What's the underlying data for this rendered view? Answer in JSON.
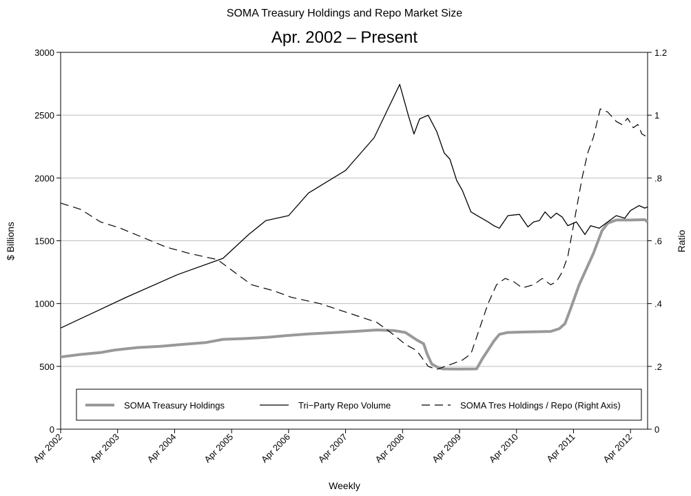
{
  "chart_data": {
    "type": "line",
    "title": "SOMA Treasury Holdings and Repo Market Size",
    "subtitle": "Apr. 2002 – Present",
    "xlabel": "Weekly",
    "ylabel_left": "$ Billions",
    "ylabel_right": "Ratio",
    "xlim": [
      2002.25,
      2012.55
    ],
    "ylim_left": [
      0,
      3000
    ],
    "ylim_right": [
      0,
      1.2
    ],
    "x_ticks": [
      {
        "x": 2002.25,
        "label": "Apr 2002"
      },
      {
        "x": 2003.25,
        "label": "Apr 2003"
      },
      {
        "x": 2004.25,
        "label": "Apr 2004"
      },
      {
        "x": 2005.25,
        "label": "Apr 2005"
      },
      {
        "x": 2006.25,
        "label": "Apr 2006"
      },
      {
        "x": 2007.25,
        "label": "Apr 2007"
      },
      {
        "x": 2008.25,
        "label": "Apr 2008"
      },
      {
        "x": 2009.25,
        "label": "Apr 2009"
      },
      {
        "x": 2010.25,
        "label": "Apr 2010"
      },
      {
        "x": 2011.25,
        "label": "Apr 2011"
      },
      {
        "x": 2012.25,
        "label": "Apr 2012"
      }
    ],
    "y_ticks_left": [
      {
        "v": 0,
        "label": "0"
      },
      {
        "v": 500,
        "label": "500"
      },
      {
        "v": 1000,
        "label": "1000"
      },
      {
        "v": 1500,
        "label": "1500"
      },
      {
        "v": 2000,
        "label": "2000"
      },
      {
        "v": 2500,
        "label": "2500"
      },
      {
        "v": 3000,
        "label": "3000"
      }
    ],
    "y_ticks_right": [
      {
        "v": 0,
        "label": "0"
      },
      {
        "v": 0.2,
        "label": ".2"
      },
      {
        "v": 0.4,
        "label": ".4"
      },
      {
        "v": 0.6,
        "label": ".6"
      },
      {
        "v": 0.8,
        "label": ".8"
      },
      {
        "v": 1.0,
        "label": "1"
      },
      {
        "v": 1.2,
        "label": "1.2"
      }
    ],
    "grid": "horizontal",
    "legend_position": "bottom-inside",
    "series": [
      {
        "name": "SOMA Treasury Holdings",
        "axis": "left",
        "style": "thick-gray",
        "color": "#999999",
        "points": [
          [
            2002.25,
            575
          ],
          [
            2002.6,
            595
          ],
          [
            2002.95,
            610
          ],
          [
            2003.2,
            630
          ],
          [
            2003.6,
            650
          ],
          [
            2004.0,
            660
          ],
          [
            2004.4,
            675
          ],
          [
            2004.8,
            690
          ],
          [
            2005.1,
            715
          ],
          [
            2005.5,
            722
          ],
          [
            2005.9,
            732
          ],
          [
            2006.2,
            745
          ],
          [
            2006.6,
            758
          ],
          [
            2007.0,
            768
          ],
          [
            2007.4,
            778
          ],
          [
            2007.8,
            790
          ],
          [
            2008.1,
            785
          ],
          [
            2008.3,
            770
          ],
          [
            2008.5,
            710
          ],
          [
            2008.62,
            680
          ],
          [
            2008.68,
            600
          ],
          [
            2008.76,
            520
          ],
          [
            2008.88,
            490
          ],
          [
            2008.95,
            480
          ],
          [
            2009.2,
            478
          ],
          [
            2009.55,
            480
          ],
          [
            2009.65,
            560
          ],
          [
            2009.85,
            700
          ],
          [
            2009.95,
            755
          ],
          [
            2010.1,
            770
          ],
          [
            2010.5,
            775
          ],
          [
            2010.85,
            778
          ],
          [
            2011.0,
            800
          ],
          [
            2011.1,
            840
          ],
          [
            2011.2,
            960
          ],
          [
            2011.35,
            1150
          ],
          [
            2011.6,
            1400
          ],
          [
            2011.75,
            1580
          ],
          [
            2011.85,
            1640
          ],
          [
            2012.0,
            1665
          ],
          [
            2012.25,
            1665
          ],
          [
            2012.5,
            1668
          ],
          [
            2012.55,
            1650
          ]
        ]
      },
      {
        "name": "Tri−Party Repo Volume",
        "axis": "left",
        "style": "thin-solid",
        "color": "#000000",
        "points": [
          [
            2002.25,
            805
          ],
          [
            2003.4,
            1050
          ],
          [
            2004.3,
            1230
          ],
          [
            2005.1,
            1360
          ],
          [
            2005.55,
            1550
          ],
          [
            2005.85,
            1660
          ],
          [
            2006.25,
            1700
          ],
          [
            2006.6,
            1880
          ],
          [
            2007.25,
            2060
          ],
          [
            2007.75,
            2320
          ],
          [
            2008.2,
            2745
          ],
          [
            2008.35,
            2500
          ],
          [
            2008.45,
            2350
          ],
          [
            2008.55,
            2470
          ],
          [
            2008.7,
            2500
          ],
          [
            2008.85,
            2370
          ],
          [
            2008.98,
            2200
          ],
          [
            2009.08,
            2150
          ],
          [
            2009.2,
            1980
          ],
          [
            2009.3,
            1900
          ],
          [
            2009.45,
            1730
          ],
          [
            2009.6,
            1690
          ],
          [
            2009.75,
            1650
          ],
          [
            2009.85,
            1620
          ],
          [
            2009.95,
            1600
          ],
          [
            2010.1,
            1700
          ],
          [
            2010.3,
            1710
          ],
          [
            2010.45,
            1610
          ],
          [
            2010.55,
            1650
          ],
          [
            2010.65,
            1660
          ],
          [
            2010.75,
            1730
          ],
          [
            2010.85,
            1680
          ],
          [
            2010.95,
            1720
          ],
          [
            2011.05,
            1690
          ],
          [
            2011.15,
            1620
          ],
          [
            2011.3,
            1650
          ],
          [
            2011.45,
            1550
          ],
          [
            2011.55,
            1620
          ],
          [
            2011.7,
            1600
          ],
          [
            2011.85,
            1650
          ],
          [
            2012.0,
            1700
          ],
          [
            2012.15,
            1680
          ],
          [
            2012.25,
            1740
          ],
          [
            2012.4,
            1780
          ],
          [
            2012.5,
            1760
          ],
          [
            2012.55,
            1770
          ]
        ]
      },
      {
        "name": "SOMA Tres Holdings / Repo (Right Axis)",
        "axis": "right",
        "style": "thin-dashed",
        "color": "#000000",
        "points": [
          [
            2002.25,
            0.72
          ],
          [
            2002.6,
            0.7
          ],
          [
            2002.95,
            0.66
          ],
          [
            2003.3,
            0.64
          ],
          [
            2003.7,
            0.61
          ],
          [
            2004.1,
            0.58
          ],
          [
            2004.5,
            0.56
          ],
          [
            2005.0,
            0.54
          ],
          [
            2005.3,
            0.5
          ],
          [
            2005.6,
            0.46
          ],
          [
            2006.0,
            0.44
          ],
          [
            2006.3,
            0.42
          ],
          [
            2006.8,
            0.4
          ],
          [
            2007.3,
            0.37
          ],
          [
            2007.8,
            0.34
          ],
          [
            2008.1,
            0.3
          ],
          [
            2008.3,
            0.27
          ],
          [
            2008.5,
            0.25
          ],
          [
            2008.62,
            0.22
          ],
          [
            2008.7,
            0.2
          ],
          [
            2008.85,
            0.19
          ],
          [
            2009.0,
            0.2
          ],
          [
            2009.15,
            0.21
          ],
          [
            2009.3,
            0.22
          ],
          [
            2009.45,
            0.24
          ],
          [
            2009.6,
            0.32
          ],
          [
            2009.75,
            0.4
          ],
          [
            2009.9,
            0.46
          ],
          [
            2010.05,
            0.48
          ],
          [
            2010.2,
            0.47
          ],
          [
            2010.35,
            0.45
          ],
          [
            2010.55,
            0.46
          ],
          [
            2010.7,
            0.48
          ],
          [
            2010.85,
            0.46
          ],
          [
            2010.95,
            0.47
          ],
          [
            2011.05,
            0.5
          ],
          [
            2011.15,
            0.55
          ],
          [
            2011.25,
            0.65
          ],
          [
            2011.4,
            0.8
          ],
          [
            2011.5,
            0.88
          ],
          [
            2011.6,
            0.93
          ],
          [
            2011.72,
            1.02
          ],
          [
            2011.85,
            1.01
          ],
          [
            2012.0,
            0.98
          ],
          [
            2012.1,
            0.97
          ],
          [
            2012.2,
            0.99
          ],
          [
            2012.3,
            0.96
          ],
          [
            2012.38,
            0.97
          ],
          [
            2012.45,
            0.94
          ],
          [
            2012.55,
            0.93
          ]
        ]
      }
    ]
  }
}
